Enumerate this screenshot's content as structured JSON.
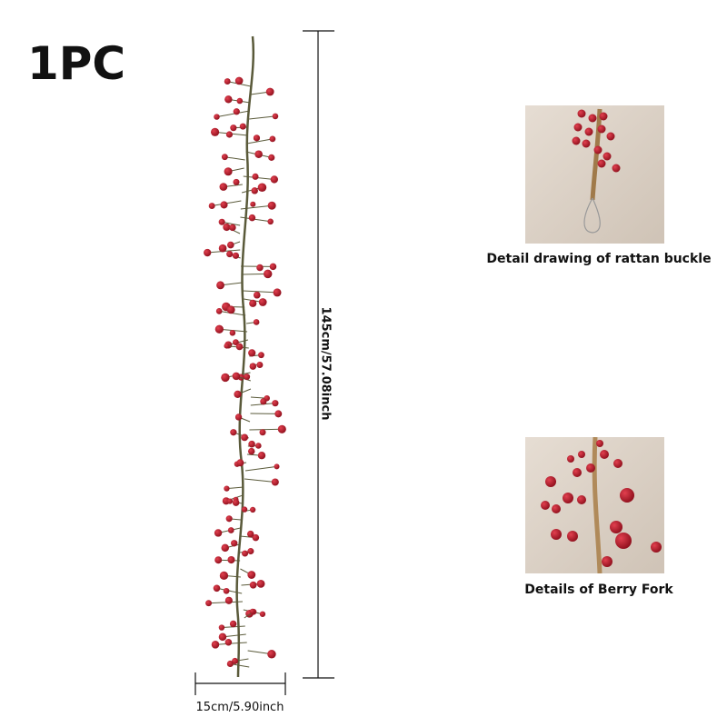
{
  "badge": "1PC",
  "dimensions": {
    "length": "145cm/57.08inch",
    "width": "15cm/5.90inch"
  },
  "details": [
    {
      "caption": "Detail drawing of rattan buckle"
    },
    {
      "caption": "Details of Berry Fork"
    }
  ]
}
